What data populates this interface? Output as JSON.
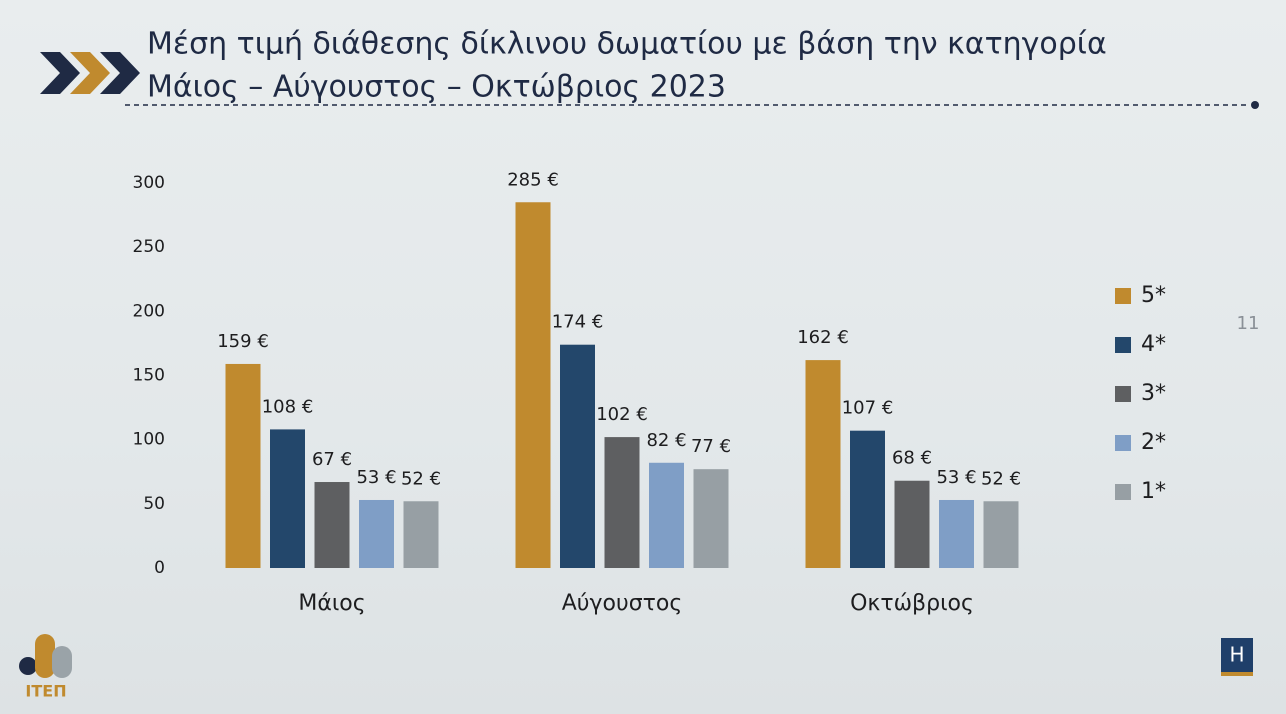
{
  "chart_data": {
    "type": "bar",
    "title": "Μέση τιμή διάθεσης δίκλινου δωματίου με βάση την κατηγορία",
    "subtitle": "Μάιος – Αύγουστος – Οκτώβριος 2023",
    "categories": [
      "Μάιος",
      "Αύγουστος",
      "Οκτώβριος"
    ],
    "series": [
      {
        "name": "5*",
        "color": "#c08a2e",
        "values": [
          159,
          285,
          162
        ],
        "value_labels": [
          "159 €",
          "285 €",
          "162 €"
        ]
      },
      {
        "name": "4*",
        "color": "#23476b",
        "values": [
          108,
          174,
          107
        ],
        "value_labels": [
          "108 €",
          "174 €",
          "107 €"
        ]
      },
      {
        "name": "3*",
        "color": "#5e5f61",
        "values": [
          67,
          102,
          68
        ],
        "value_labels": [
          "67 €",
          "102 €",
          "68 €"
        ]
      },
      {
        "name": "2*",
        "color": "#7f9ec6",
        "values": [
          53,
          82,
          53
        ],
        "value_labels": [
          "53 €",
          "82 €",
          "53 €"
        ]
      },
      {
        "name": "1*",
        "color": "#979fa4",
        "values": [
          52,
          77,
          52
        ],
        "value_labels": [
          "52 €",
          "77 €",
          "52 €"
        ]
      }
    ],
    "ylim": [
      0,
      300
    ],
    "yticks": [
      0,
      50,
      100,
      150,
      200,
      250,
      300
    ],
    "grid": false,
    "legend": "right"
  },
  "page_number": "11",
  "logo_text": "ΙΤΕΠ",
  "logo_mark": "H"
}
